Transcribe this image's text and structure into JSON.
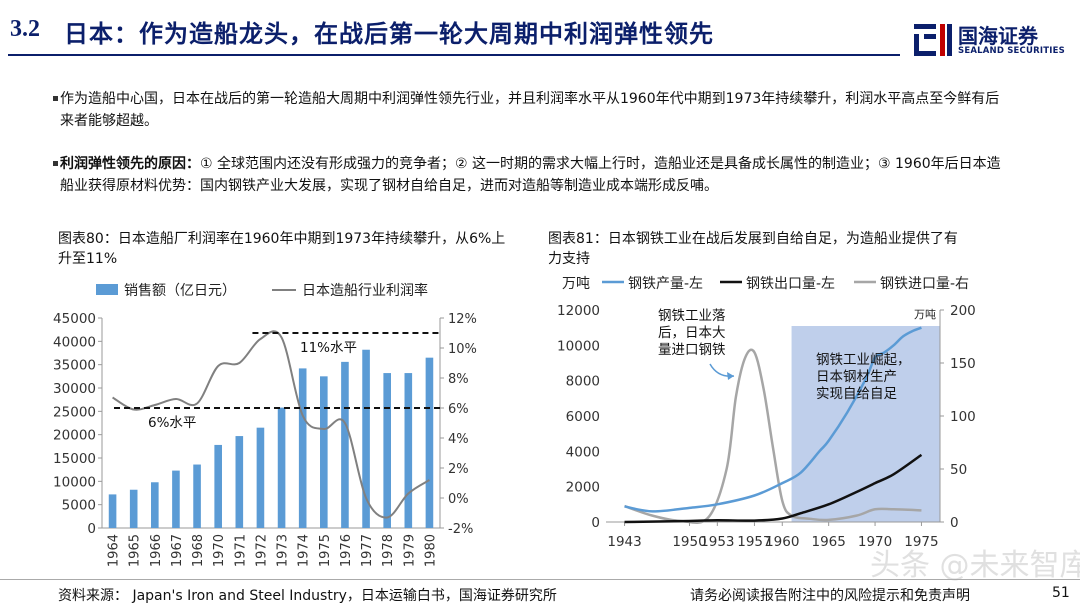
{
  "header": {
    "section_number": "3.2",
    "title": "日本：作为造船龙头，在战后第一轮大周期中利润弹性领先",
    "logo_cn": "国海证券",
    "logo_en": "SEALAND SECURITIES"
  },
  "bullets": [
    {
      "bold": "",
      "text": "作为造船中心国，日本在战后的第一轮造船大周期中利润弹性领先行业，并且利润率水平从1960年代中期到1973年持续攀升，利润水平高点至今鲜有后来者能够超越。"
    },
    {
      "bold": "利润弹性领先的原因：",
      "text": "① 全球范围内还没有形成强力的竞争者；② 这一时期的需求大幅上行时，造船业还是具备成长属性的制造业；③ 1960年后日本造船业获得原材料优势：国内钢铁产业大发展，实现了钢材自给自足，进而对造船等制造业成本端形成反哺。"
    }
  ],
  "captions": {
    "left": "图表80：日本造船厂利润率在1960年中期到1973年持续攀升，从6%上升至11%",
    "right": "图表81：日本钢铁工业在战后发展到自给自足，为造船业提供了有力支持"
  },
  "chart_data": [
    {
      "type": "bar",
      "title": "",
      "categories": [
        "1964",
        "1965",
        "1966",
        "1967",
        "1968",
        "1970",
        "1971",
        "1972",
        "1973",
        "1974",
        "1975",
        "1976",
        "1977",
        "1978",
        "1979",
        "1980"
      ],
      "series": [
        {
          "name": "销售额（亿日元）",
          "type": "bar",
          "axis": "left",
          "color": "#5b9bd5",
          "values": [
            7200,
            8200,
            9800,
            12300,
            13600,
            17800,
            19700,
            21500,
            25800,
            34200,
            32500,
            35600,
            38200,
            33200,
            33200,
            36500
          ]
        },
        {
          "name": "日本造船行业利润率",
          "type": "line",
          "axis": "right",
          "color": "#808080",
          "values": [
            6.7,
            5.9,
            6.2,
            6.6,
            6.3,
            8.8,
            9.0,
            10.6,
            10.7,
            5.5,
            4.6,
            5.0,
            0.0,
            -1.3,
            0.3,
            1.2
          ]
        }
      ],
      "y_left": {
        "min": 0,
        "max": 45000,
        "ticks": [
          "0",
          "5000",
          "10000",
          "15000",
          "20000",
          "25000",
          "30000",
          "35000",
          "40000",
          "45000"
        ]
      },
      "y_right": {
        "min": -2,
        "max": 12,
        "ticks": [
          "-2%",
          "0%",
          "2%",
          "4%",
          "6%",
          "8%",
          "10%",
          "12%"
        ]
      },
      "annotations": [
        {
          "label": "6%水平",
          "level": 6,
          "axis": "right"
        },
        {
          "label": "11%水平",
          "level": 11,
          "axis": "right"
        }
      ],
      "legend_position": "top"
    },
    {
      "type": "line",
      "title": "",
      "y_left_unit": "万吨",
      "y_right_unit": "万吨",
      "x_ticks": [
        "1943",
        "1950",
        "1953",
        "1957",
        "1960",
        "1965",
        "1970",
        "1975"
      ],
      "x_range": [
        1941,
        1977
      ],
      "series": [
        {
          "name": "钢铁产量-左",
          "axis": "left",
          "color": "#5b9bd5",
          "points": [
            [
              1943,
              880
            ],
            [
              1946,
              600
            ],
            [
              1950,
              800
            ],
            [
              1953,
              1000
            ],
            [
              1957,
              1500
            ],
            [
              1960,
              2200
            ],
            [
              1962,
              2800
            ],
            [
              1964,
              4000
            ],
            [
              1965,
              4600
            ],
            [
              1967,
              6200
            ],
            [
              1969,
              8100
            ],
            [
              1970,
              9300
            ],
            [
              1971,
              9600
            ],
            [
              1972,
              10000
            ],
            [
              1973,
              10500
            ],
            [
              1974,
              10800
            ],
            [
              1975,
              11000
            ]
          ]
        },
        {
          "name": "钢铁出口量-左",
          "axis": "left",
          "color": "#111111",
          "points": [
            [
              1943,
              0
            ],
            [
              1950,
              60
            ],
            [
              1953,
              100
            ],
            [
              1957,
              80
            ],
            [
              1960,
              200
            ],
            [
              1962,
              500
            ],
            [
              1965,
              1000
            ],
            [
              1968,
              1700
            ],
            [
              1970,
              2200
            ],
            [
              1972,
              2700
            ],
            [
              1975,
              3800
            ]
          ]
        },
        {
          "name": "钢铁进口量-右",
          "axis": "right",
          "color": "#a6a6a6",
          "points": [
            [
              1943,
              15
            ],
            [
              1946,
              6
            ],
            [
              1949,
              1
            ],
            [
              1952,
              4
            ],
            [
              1954,
              50
            ],
            [
              1955,
              118
            ],
            [
              1956,
              155
            ],
            [
              1957,
              160
            ],
            [
              1958,
              125
            ],
            [
              1959,
              70
            ],
            [
              1960,
              20
            ],
            [
              1961,
              6
            ],
            [
              1963,
              3
            ],
            [
              1965,
              2
            ],
            [
              1968,
              6
            ],
            [
              1970,
              12
            ],
            [
              1972,
              12
            ],
            [
              1975,
              11
            ]
          ]
        }
      ],
      "y_left": {
        "min": 0,
        "max": 12000,
        "ticks": [
          "0",
          "2000",
          "4000",
          "6000",
          "8000",
          "10000",
          "12000"
        ]
      },
      "y_right": {
        "min": 0,
        "max": 200,
        "ticks": [
          "0",
          "50",
          "100",
          "150",
          "200"
        ]
      },
      "shaded_region": {
        "from": 1961,
        "to": 1977
      },
      "annotations": [
        {
          "label_lines": [
            "钢铁工业落",
            "后，日本大",
            "量进口钢铁"
          ]
        },
        {
          "label_lines": [
            "钢铁工业崛起，",
            "日本钢材生产",
            "实现自给自足"
          ]
        }
      ],
      "legend_position": "top"
    }
  ],
  "footer": {
    "source": "资料来源：  Japan's Iron and Steel Industry，日本运输白书，国海证券研究所",
    "disclaimer": "请务必阅读报告附注中的风险提示和免责声明",
    "page": "51"
  },
  "watermark": {
    "main": "头条 @未来智库",
    "small": "未来智库"
  }
}
